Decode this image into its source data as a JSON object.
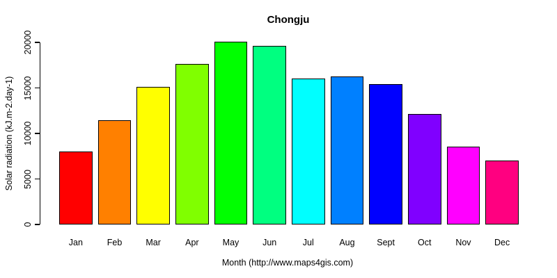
{
  "page": {
    "background_color": "#ffffff",
    "text_color": "#000000",
    "axis_color": "#000000"
  },
  "chart_data": {
    "type": "bar",
    "title": "Chongju",
    "categories": [
      "Jan",
      "Feb",
      "Mar",
      "Apr",
      "May",
      "Jun",
      "Jul",
      "Aug",
      "Sept",
      "Oct",
      "Nov",
      "Dec"
    ],
    "values": [
      8050,
      11450,
      15150,
      17600,
      20100,
      19650,
      16050,
      16250,
      15450,
      12150,
      8550,
      7050
    ],
    "bar_colors": [
      "#FF0000",
      "#FF8000",
      "#FFFF00",
      "#80FF00",
      "#00FF00",
      "#00FF80",
      "#00FFFF",
      "#0080FF",
      "#0000FF",
      "#8000FF",
      "#FF00FF",
      "#FF0080"
    ],
    "bar_border_color": "#000000",
    "xlabel": "Month (http://www.maps4gis.com)",
    "ylabel": "Solar radiation (kJ.m-2.day-1)",
    "ylim": [
      0,
      20000
    ],
    "yticks": [
      0,
      5000,
      10000,
      15000,
      20000
    ],
    "ytick_labels": [
      "0",
      "5000",
      "10000",
      "15000",
      "20000"
    ],
    "ytick_label_rotation_deg": -90,
    "grid": false,
    "legend": "none"
  }
}
